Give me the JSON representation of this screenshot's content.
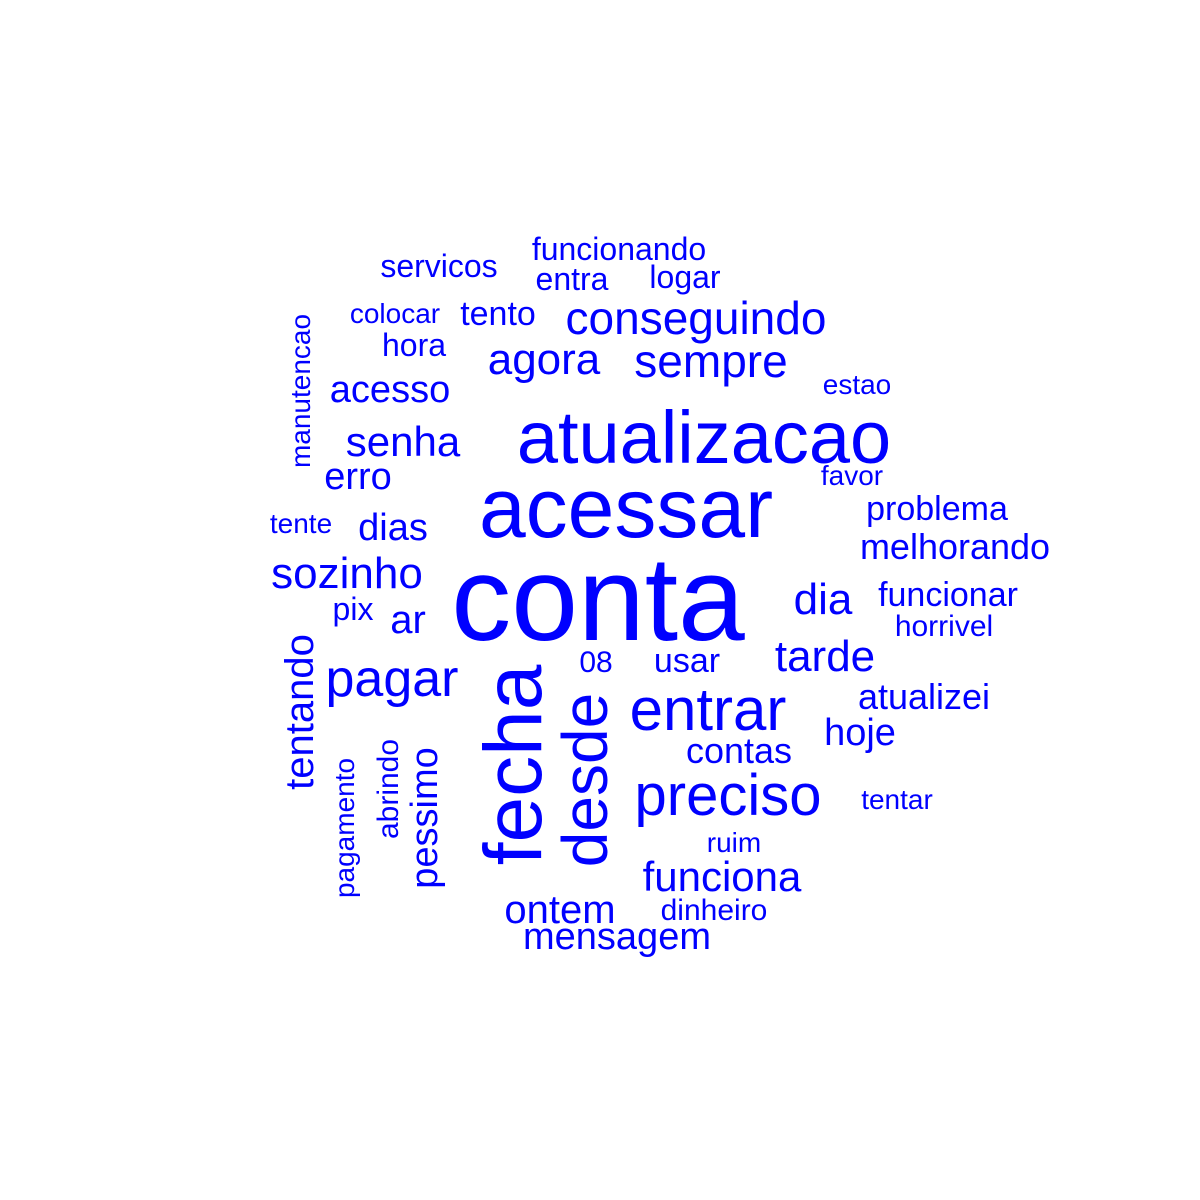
{
  "color": "#0000ff",
  "words": [
    "conta",
    "acessar",
    "atualizacao",
    "fecha",
    "desde",
    "entrar",
    "preciso",
    "pagar",
    "conseguindo",
    "sempre",
    "agora",
    "senha",
    "sozinho",
    "tentando",
    "funciona",
    "tarde",
    "acesso",
    "dia",
    "mensagem",
    "ontem",
    "dias",
    "erro",
    "hoje",
    "contas",
    "pessimo",
    "melhorando",
    "atualizei",
    "problema",
    "funcionar",
    "ar",
    "usar",
    "servicos",
    "funcionando",
    "tento",
    "logar",
    "entra",
    "hora",
    "abrindo",
    "manutencao",
    "pagamento",
    "dinheiro",
    "horrivel",
    "colocar",
    "estao",
    "favor",
    "tentar",
    "pix",
    "ruim",
    "tente",
    "08"
  ]
}
